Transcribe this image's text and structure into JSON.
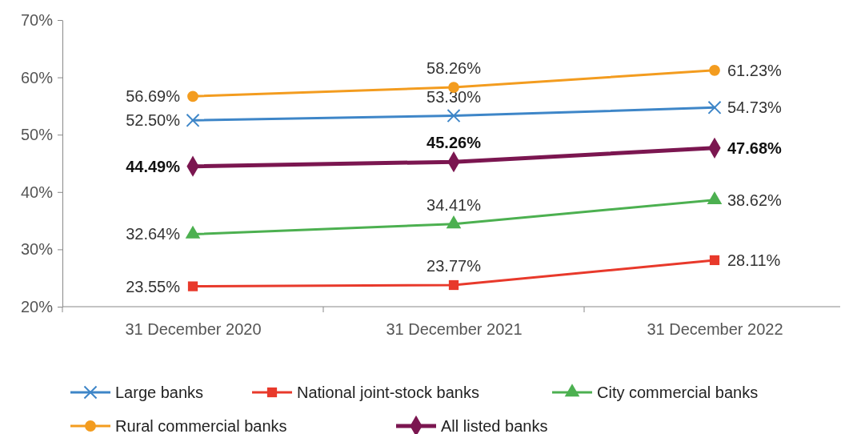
{
  "chart_data": {
    "type": "line",
    "categories": [
      "31 December 2020",
      "31 December 2021",
      "31 December 2022"
    ],
    "ylim": [
      0.2,
      0.7
    ],
    "yticks": [
      {
        "value": 0.2,
        "label": "20%"
      },
      {
        "value": 0.3,
        "label": "30%"
      },
      {
        "value": 0.4,
        "label": "40%"
      },
      {
        "value": 0.5,
        "label": "50%"
      },
      {
        "value": 0.6,
        "label": "60%"
      },
      {
        "value": 0.7,
        "label": "70%"
      }
    ],
    "grid": false,
    "legend": "bottom",
    "data_labels": false,
    "series": [
      {
        "name": "Large banks",
        "color": "#3e86c8",
        "marker": "cross",
        "values": [
          0.525,
          0.533,
          0.5473
        ],
        "value_labels": [
          "52.50%",
          "53.30%",
          "54.73%"
        ]
      },
      {
        "name": "National joint-stock banks",
        "color": "#e8392b",
        "marker": "square",
        "values": [
          0.2355,
          0.2377,
          0.2811
        ],
        "value_labels": [
          "23.55%",
          "23.77%",
          "28.11%"
        ]
      },
      {
        "name": "City commercial banks",
        "color": "#4cb050",
        "marker": "triangle",
        "values": [
          0.3264,
          0.3441,
          0.3862
        ],
        "value_labels": [
          "32.64%",
          "34.41%",
          "38.62%"
        ]
      },
      {
        "name": "Rural commercial banks",
        "color": "#f39c1f",
        "marker": "circle",
        "values": [
          0.5669,
          0.5826,
          0.6123
        ],
        "value_labels": [
          "56.69%",
          "58.26%",
          "61.23%"
        ]
      },
      {
        "name": "All listed banks",
        "color": "#7b1650",
        "marker": "diamond",
        "values": [
          0.4449,
          0.4526,
          0.4768
        ],
        "value_labels": [
          "44.49%",
          "45.26%",
          "47.68%"
        ]
      }
    ]
  }
}
